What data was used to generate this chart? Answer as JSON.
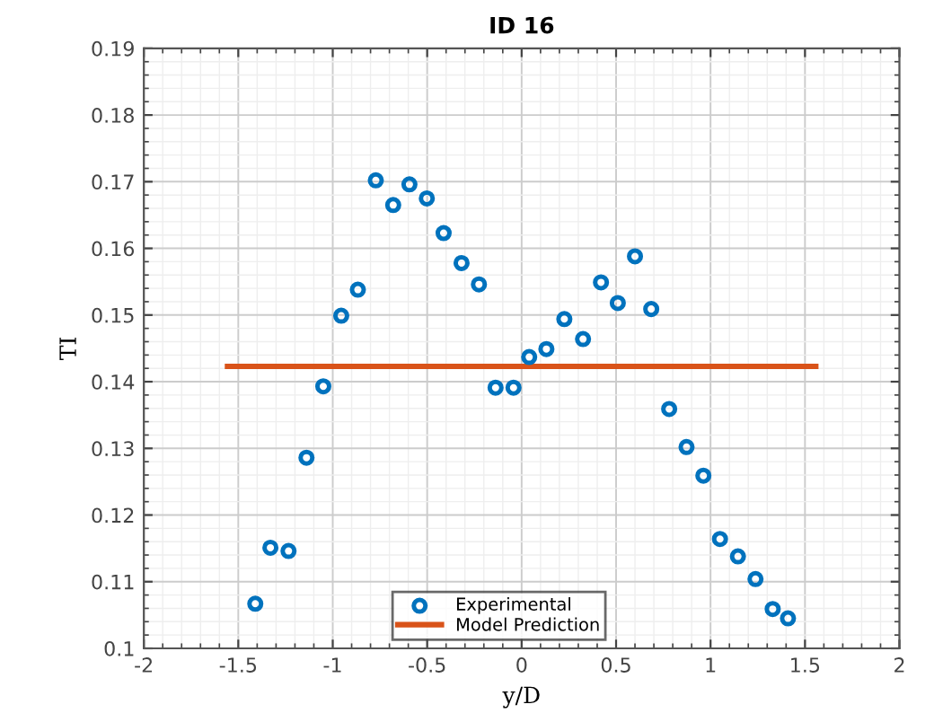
{
  "chart_data": {
    "type": "scatter",
    "title": "ID 16",
    "xlabel": "y/D",
    "ylabel": "TI",
    "xlim": [
      -2,
      2
    ],
    "xticks": [
      -2,
      -1.5,
      -1,
      -0.5,
      0,
      0.5,
      1,
      1.5,
      2
    ],
    "ylim": [
      0.1,
      0.19
    ],
    "yticks": [
      0.1,
      0.11,
      0.12,
      0.13,
      0.14,
      0.15,
      0.16,
      0.17,
      0.18,
      0.19
    ],
    "grid": true,
    "legend": "bottom",
    "series": [
      {
        "name": "Experimental",
        "marker": "circle",
        "color": "#0072bd",
        "x": [
          -1.41,
          -1.33,
          -1.234,
          -1.139,
          -1.05,
          -0.955,
          -0.867,
          -0.772,
          -0.68,
          -0.594,
          -0.502,
          -0.413,
          -0.318,
          -0.226,
          -0.138,
          -0.043,
          0.04,
          0.131,
          0.226,
          0.325,
          0.42,
          0.509,
          0.6,
          0.686,
          0.781,
          0.873,
          0.962,
          1.05,
          1.145,
          1.238,
          1.329,
          1.41
        ],
        "values": [
          0.1067,
          0.1151,
          0.1146,
          0.1286,
          0.1393,
          0.1499,
          0.1538,
          0.1702,
          0.1665,
          0.1696,
          0.1675,
          0.1623,
          0.1578,
          0.1546,
          0.1391,
          0.1391,
          0.1437,
          0.1449,
          0.1494,
          0.1464,
          0.1549,
          0.1518,
          0.1588,
          0.1509,
          0.1359,
          0.1302,
          0.1259,
          0.1164,
          0.1138,
          0.1104,
          0.1059,
          0.1045
        ]
      },
      {
        "name": "Model Prediction",
        "type": "line",
        "color": "#d95319",
        "line_style": "solid",
        "x": [
          -1.557,
          1.557
        ],
        "values": [
          0.1423,
          0.1423
        ]
      }
    ]
  }
}
